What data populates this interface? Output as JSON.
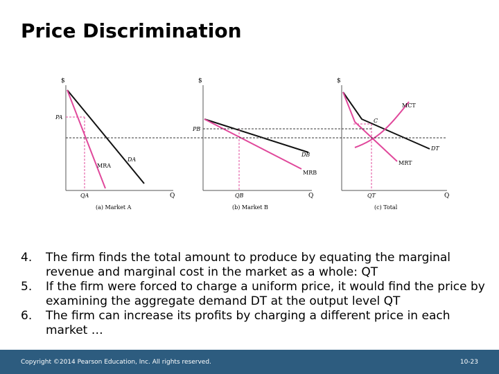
{
  "slide": {
    "title": "Price Discrimination",
    "footer_copyright": "Copyright ©2014 Pearson Education, Inc. All rights reserved.",
    "page_number": "10-23"
  },
  "diagram": {
    "panel_a": {
      "y_axis": "$",
      "x_axis": "Q",
      "price": "PA",
      "demand": "DA",
      "mr": "MRA",
      "qty": "QA",
      "caption": "(a)  Market A"
    },
    "panel_b": {
      "y_axis": "$",
      "x_axis": "Q",
      "price": "PB",
      "demand": "DB",
      "mr": "MRB",
      "qty": "QB",
      "caption": "(b)  Market B"
    },
    "panel_c": {
      "y_axis": "$",
      "x_axis": "Q",
      "mc": "MCT",
      "demand": "DT",
      "mr": "MRT",
      "point": "C",
      "qty": "QT",
      "caption": "(c)  Total"
    },
    "colors": {
      "curve_black": "#111111",
      "mr_pink": "#e0489b",
      "mc_pink": "#e0489b",
      "dashed": "#e0489b",
      "dashed_black": "#333333"
    }
  },
  "bullets": [
    {
      "num": "4.",
      "text": "The firm finds the total amount to produce by equating the marginal revenue and marginal cost in the market as a whole: QT"
    },
    {
      "num": "5.",
      "text": "If the firm were forced to charge a uniform price, it would find the price by examining the aggregate demand DT at the output level QT"
    },
    {
      "num": "6.",
      "text": "The firm can increase its profits by charging a different price in each market …"
    }
  ]
}
